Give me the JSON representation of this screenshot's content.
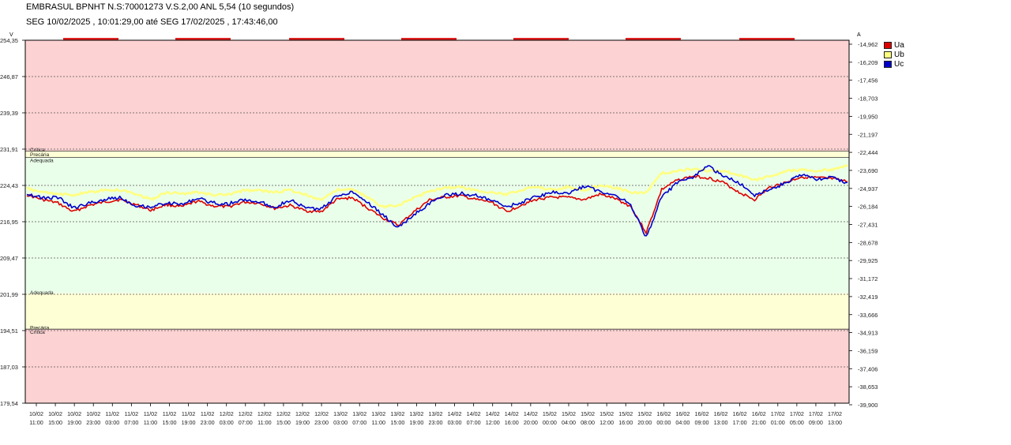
{
  "header": {
    "title": "EMBRASUL BPNHT N.S:70001273  V.S.2,00 ANL 5,54 (10 segundos)",
    "period": "SEG 10/02/2025 , 10:01:29,00 até SEG 17/02/2025 , 17:43:46,00"
  },
  "colors": {
    "critical_zone": "#fdd2d2",
    "precarious_zone": "#ffffd6",
    "adequate_zone": "#eaffea",
    "Ua": "#dd0000",
    "Ub": "#ffff80",
    "Uc": "#0000cc"
  },
  "chart_data": {
    "type": "line",
    "left_axis_unit": "V",
    "right_axis_unit": "A",
    "y_ticks_left": [
      "254,35",
      "246,87",
      "239,39",
      "231,91",
      "224,43",
      "216,95",
      "209,47",
      "201,99",
      "194,51",
      "187,03",
      "179,54"
    ],
    "y_ticks_right": [
      "-14,962",
      "-16,209",
      "-17,456",
      "-18,703",
      "-19,950",
      "-21,197",
      "-22,444",
      "-23,690",
      "-24,937",
      "-26,184",
      "-27,431",
      "-28,678",
      "-29,925",
      "-31,172",
      "-32,419",
      "-33,666",
      "-34,913",
      "-36,159",
      "-37,406",
      "-38,653",
      "-39,900"
    ],
    "ylim": [
      179.54,
      254.35
    ],
    "x_ticks": [
      {
        "date": "10/02",
        "time": "11:00"
      },
      {
        "date": "10/02",
        "time": "15:00"
      },
      {
        "date": "10/02",
        "time": "19:00"
      },
      {
        "date": "10/02",
        "time": "23:00"
      },
      {
        "date": "11/02",
        "time": "03:00"
      },
      {
        "date": "11/02",
        "time": "07:00"
      },
      {
        "date": "11/02",
        "time": "11:00"
      },
      {
        "date": "11/02",
        "time": "15:00"
      },
      {
        "date": "11/02",
        "time": "19:00"
      },
      {
        "date": "11/02",
        "time": "23:00"
      },
      {
        "date": "12/02",
        "time": "03:00"
      },
      {
        "date": "12/02",
        "time": "07:00"
      },
      {
        "date": "12/02",
        "time": "11:00"
      },
      {
        "date": "12/02",
        "time": "15:00"
      },
      {
        "date": "12/02",
        "time": "19:00"
      },
      {
        "date": "12/02",
        "time": "23:00"
      },
      {
        "date": "13/02",
        "time": "03:00"
      },
      {
        "date": "13/02",
        "time": "07:00"
      },
      {
        "date": "13/02",
        "time": "11:00"
      },
      {
        "date": "13/02",
        "time": "15:00"
      },
      {
        "date": "13/02",
        "time": "19:00"
      },
      {
        "date": "13/02",
        "time": "23:00"
      },
      {
        "date": "14/02",
        "time": "03:00"
      },
      {
        "date": "14/02",
        "time": "07:00"
      },
      {
        "date": "14/02",
        "time": "12:00"
      },
      {
        "date": "14/02",
        "time": "16:00"
      },
      {
        "date": "14/02",
        "time": "20:00"
      },
      {
        "date": "15/02",
        "time": "00:00"
      },
      {
        "date": "15/02",
        "time": "04:00"
      },
      {
        "date": "15/02",
        "time": "08:00"
      },
      {
        "date": "15/02",
        "time": "12:00"
      },
      {
        "date": "15/02",
        "time": "16:00"
      },
      {
        "date": "15/02",
        "time": "20:00"
      },
      {
        "date": "16/02",
        "time": "00:00"
      },
      {
        "date": "16/02",
        "time": "04:00"
      },
      {
        "date": "16/02",
        "time": "09:00"
      },
      {
        "date": "16/02",
        "time": "13:00"
      },
      {
        "date": "16/02",
        "time": "17:00"
      },
      {
        "date": "16/02",
        "time": "21:00"
      },
      {
        "date": "17/02",
        "time": "01:00"
      },
      {
        "date": "17/02",
        "time": "05:00"
      },
      {
        "date": "17/02",
        "time": "09:00"
      },
      {
        "date": "17/02",
        "time": "13:00"
      }
    ],
    "zones": [
      {
        "label": "Crítica",
        "from": 231.5,
        "to": 254.35,
        "kind": "critical"
      },
      {
        "label": "Precária",
        "from": 230.2,
        "to": 231.5,
        "kind": "precarious"
      },
      {
        "label": "Adequada",
        "from": 202.2,
        "to": 230.2,
        "kind": "adequate"
      },
      {
        "label": "Adequada",
        "from": 194.8,
        "to": 202.2,
        "kind": "precarious"
      },
      {
        "label": "Precária",
        "from": 194.8,
        "to": 194.8,
        "kind": "boundary"
      },
      {
        "label": "Crítica",
        "from": 179.54,
        "to": 194.8,
        "kind": "critical"
      }
    ],
    "zone_labels": [
      {
        "text": "Crítica",
        "y": 231.9
      },
      {
        "text": "Precária",
        "y": 230.9
      },
      {
        "text": "Adequada",
        "y": 229.7
      },
      {
        "text": "Adequada",
        "y": 202.5
      },
      {
        "text": "Precária",
        "y": 195.2
      },
      {
        "text": "Crítica",
        "y": 194.3
      }
    ],
    "series": [
      {
        "name": "Ua",
        "values": [
          222.5,
          221.5,
          220.8,
          219.0,
          220.3,
          221.0,
          221.5,
          220.5,
          219.3,
          220.5,
          220.0,
          221.2,
          220.2,
          220.0,
          221.0,
          220.8,
          219.7,
          220.3,
          219.2,
          219.0,
          221.5,
          221.9,
          219.8,
          217.7,
          216.2,
          219.0,
          221.4,
          222.0,
          222.3,
          221.5,
          221.0,
          219.0,
          220.5,
          221.6,
          222.0,
          221.9,
          221.5,
          222.6,
          221.7,
          220.1,
          214.7,
          223.6,
          225.5,
          226.3,
          226.0,
          225.0,
          223.0,
          221.5,
          224.1,
          225.0,
          226.2,
          226.0,
          225.8,
          225.2
        ]
      },
      {
        "name": "Ub",
        "values": [
          223.8,
          223.0,
          222.6,
          222.5,
          223.0,
          223.4,
          223.5,
          222.8,
          221.5,
          223.0,
          222.7,
          223.0,
          222.5,
          222.5,
          223.4,
          223.4,
          223.0,
          223.5,
          222.5,
          221.5,
          223.5,
          223.6,
          222.0,
          220.0,
          220.4,
          221.8,
          223.2,
          224.0,
          224.1,
          223.4,
          223.0,
          222.5,
          223.6,
          224.0,
          223.5,
          224.2,
          223.3,
          224.5,
          224.0,
          223.0,
          223.0,
          226.9,
          227.4,
          227.8,
          227.5,
          227.4,
          226.5,
          225.5,
          226.3,
          227.4,
          227.6,
          227.4,
          227.7,
          228.6
        ]
      },
      {
        "name": "Uc",
        "values": [
          222.8,
          221.8,
          222.0,
          219.8,
          220.7,
          221.5,
          222.0,
          220.3,
          220.0,
          220.8,
          220.5,
          221.8,
          220.8,
          220.6,
          221.5,
          221.0,
          220.0,
          221.4,
          219.8,
          219.5,
          222.2,
          223.2,
          221.0,
          218.3,
          215.7,
          218.4,
          220.7,
          222.4,
          222.8,
          222.3,
          221.3,
          220.0,
          221.0,
          222.2,
          223.0,
          222.8,
          224.3,
          223.2,
          222.5,
          220.5,
          213.7,
          222.0,
          225.0,
          226.0,
          228.5,
          226.2,
          225.0,
          222.5,
          223.5,
          225.0,
          226.5,
          225.8,
          226.0,
          225.0
        ]
      }
    ],
    "legend_position": "right",
    "grid": true
  }
}
